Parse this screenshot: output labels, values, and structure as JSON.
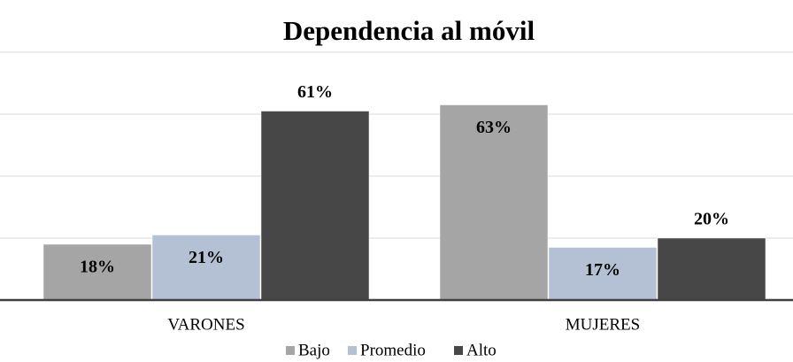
{
  "chart_data": {
    "type": "bar",
    "title": "Dependencia al móvil",
    "categories": [
      "VARONES",
      "MUJERES"
    ],
    "series": [
      {
        "name": "Bajo",
        "color": "#a5a5a5",
        "values": [
          18,
          63
        ],
        "value_labels": [
          "18%",
          "63%"
        ]
      },
      {
        "name": "Promedio",
        "color": "#b4c0d4",
        "values": [
          21,
          17
        ],
        "value_labels": [
          "21%",
          "17%"
        ]
      },
      {
        "name": "Alto",
        "color": "#474747",
        "values": [
          61,
          20
        ],
        "value_labels": [
          "61%",
          "20%"
        ]
      }
    ],
    "ylim": [
      0,
      80
    ],
    "yticks": [
      0,
      20,
      40,
      60,
      80
    ],
    "grid": true,
    "legend": "bottom"
  }
}
